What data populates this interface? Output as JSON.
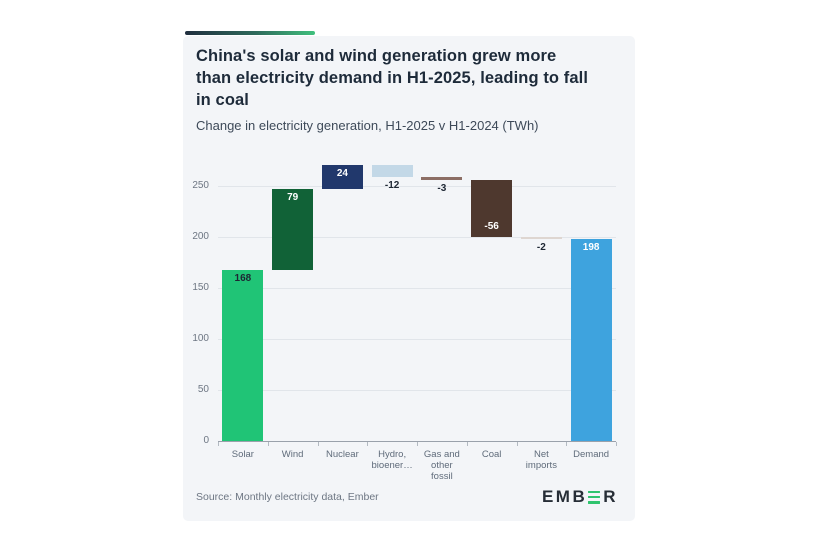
{
  "page": {
    "background": "#ffffff"
  },
  "card": {
    "background": "#f3f5f8",
    "accent_gradient": [
      "#202e3e",
      "#40c07d"
    ],
    "title": "China's solar and wind generation grew more than electricity demand in H1-2025, leading to fall in coal",
    "title_lines": [
      "China's solar and wind generation grew more",
      "than electricity demand in H1-2025, leading to fall",
      "in coal"
    ],
    "subtitle": "Change in electricity generation, H1-2025 v H1-2024 (TWh)",
    "source": "Source: Monthly electricity data, Ember"
  },
  "logo": {
    "name": "EMBER",
    "text_before": "EMB",
    "stylized_letter": "E",
    "text_after": "R",
    "bar_color": "#2fc46e",
    "text_color": "#262d36"
  },
  "chart_data": {
    "type": "bar",
    "subtype": "waterfall",
    "title": "China's solar and wind generation grew more than electricity demand in H1-2025, leading to fall in coal",
    "unit": "TWh",
    "xlabel": "",
    "ylabel": "",
    "ylim": [
      0,
      285
    ],
    "yticks": [
      0,
      50,
      100,
      150,
      200,
      250
    ],
    "grid": true,
    "legend": false,
    "categories": [
      "Solar",
      "Wind",
      "Nuclear",
      "Hydro, bioener…",
      "Gas and other fossil",
      "Coal",
      "Net imports",
      "Demand"
    ],
    "items": [
      {
        "label_lines": [
          "Solar"
        ],
        "value": 168,
        "kind": "delta",
        "color": "#20c476",
        "value_label": "168",
        "label_pos": "inside-top",
        "label_color": "#1d2633"
      },
      {
        "label_lines": [
          "Wind"
        ],
        "value": 79,
        "kind": "delta",
        "color": "#116237",
        "value_label": "79",
        "label_pos": "inside-top",
        "label_color": "#ffffff"
      },
      {
        "label_lines": [
          "Nuclear"
        ],
        "value": 24,
        "kind": "delta",
        "color": "#21386c",
        "value_label": "24",
        "label_pos": "inside-top",
        "label_color": "#ffffff"
      },
      {
        "label_lines": [
          "Hydro,",
          "bioener…"
        ],
        "value": -12,
        "kind": "delta",
        "color": "#c3d8e7",
        "value_label": "-12",
        "label_pos": "below",
        "label_color": "#1d2633"
      },
      {
        "label_lines": [
          "Gas and",
          "other",
          "fossil"
        ],
        "value": -3,
        "kind": "delta",
        "color": "#8c6e65",
        "value_label": "-3",
        "label_pos": "below",
        "label_color": "#1d2633"
      },
      {
        "label_lines": [
          "Coal"
        ],
        "value": -56,
        "kind": "delta",
        "color": "#4e382e",
        "value_label": "-56",
        "label_pos": "inside-bottom",
        "label_color": "#ffffff"
      },
      {
        "label_lines": [
          "Net",
          "imports"
        ],
        "value": -2,
        "kind": "delta",
        "color": "#ded6d1",
        "value_label": "-2",
        "label_pos": "below",
        "label_color": "#1d2633"
      },
      {
        "label_lines": [
          "Demand"
        ],
        "value": 198,
        "kind": "total",
        "color": "#3ea3de",
        "value_label": "198",
        "label_pos": "inside-top",
        "label_color": "#ffffff"
      }
    ],
    "cumulative_check": {
      "sum_of_deltas": 198,
      "total_bar": 198
    }
  }
}
